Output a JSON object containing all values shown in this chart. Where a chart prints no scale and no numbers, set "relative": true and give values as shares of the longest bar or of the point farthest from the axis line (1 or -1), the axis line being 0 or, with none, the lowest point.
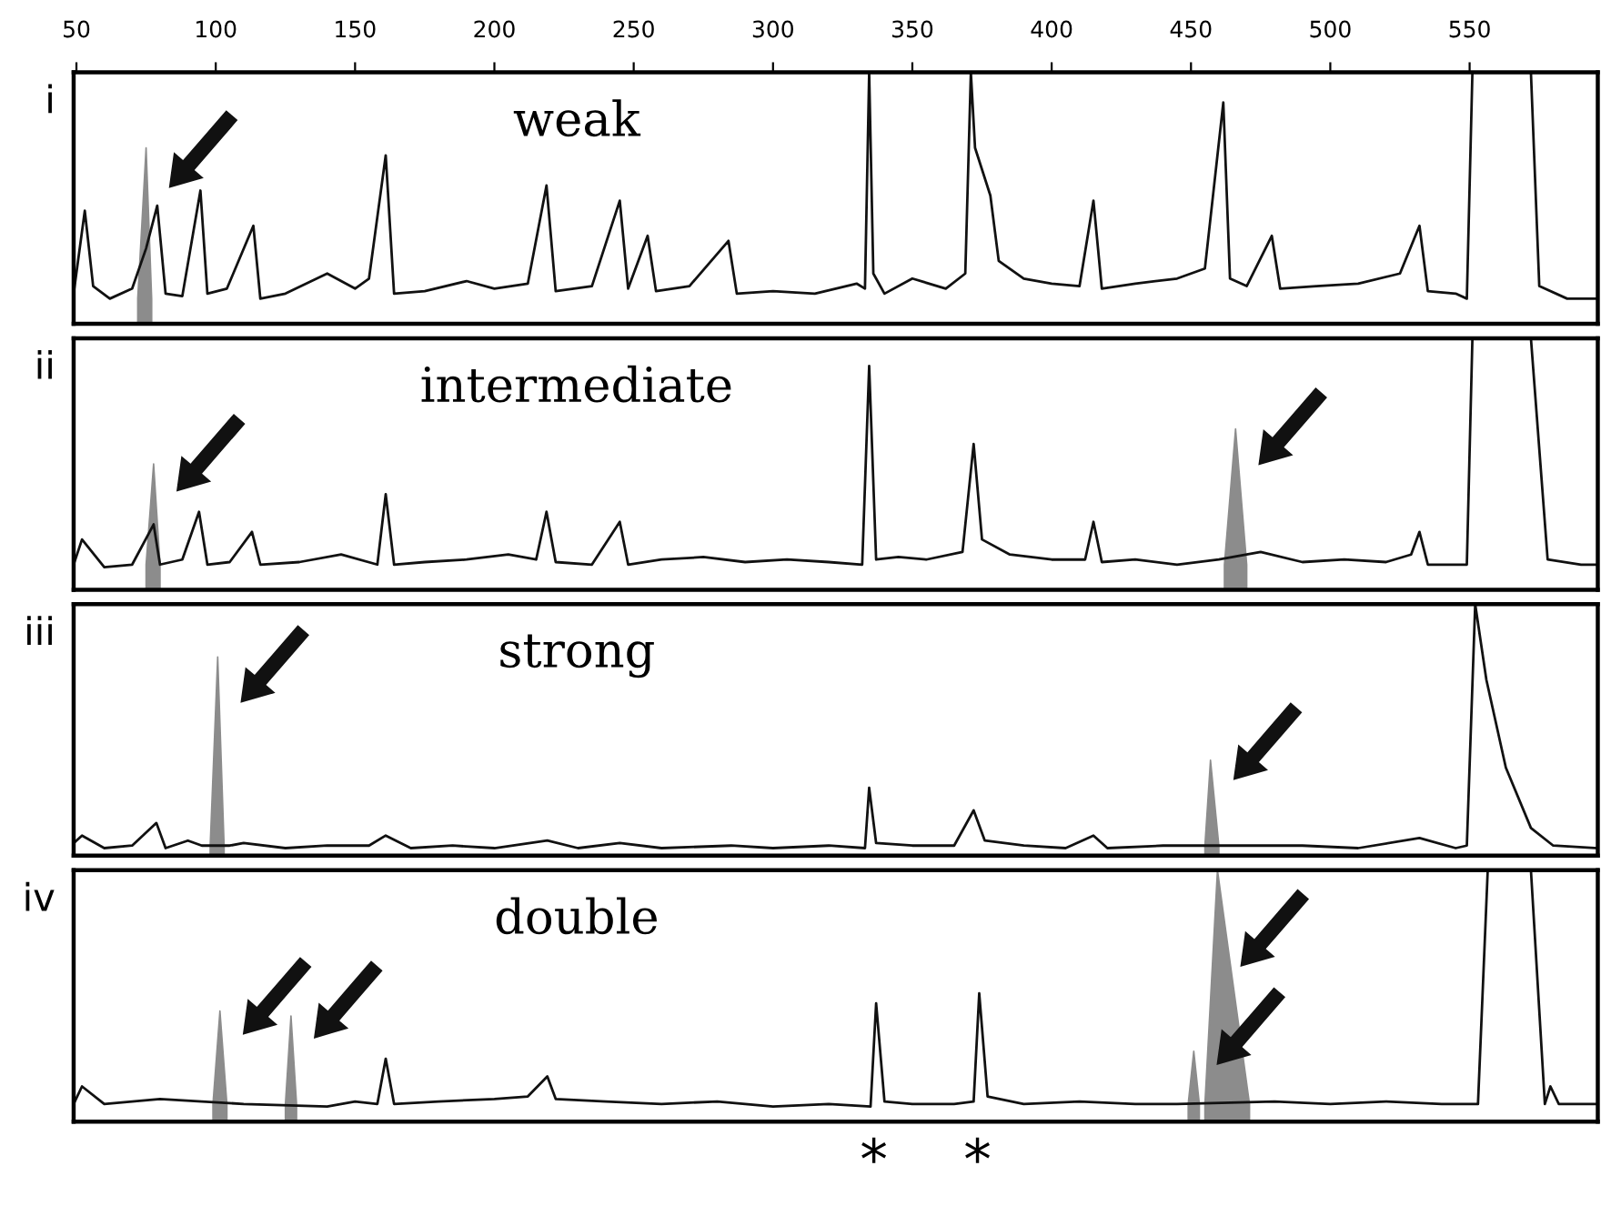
{
  "chart_data": [
    {
      "type": "line",
      "title": "weak",
      "ylabel": "i",
      "relative": true,
      "xlim": [
        49,
        596
      ],
      "xticks": [
        50,
        100,
        150,
        200,
        250,
        300,
        350,
        400,
        450,
        500,
        550
      ],
      "legend": false,
      "grid": false,
      "series": [
        {
          "color": "#111111",
          "x": [
            49,
            53,
            56,
            62,
            70,
            75,
            79,
            82,
            88,
            94.5,
            97,
            104,
            113.5,
            116,
            125,
            140,
            150,
            155,
            161,
            164,
            175,
            190,
            200,
            212,
            218.7,
            222,
            235,
            245,
            248,
            255,
            258,
            270,
            284,
            287,
            300,
            315,
            330,
            333,
            334.5,
            336,
            340,
            350,
            362,
            369,
            371,
            372.5,
            378,
            381,
            390,
            400,
            410,
            415,
            418,
            430,
            445,
            455,
            461.6,
            464,
            470,
            479,
            482,
            495,
            510,
            525,
            532,
            535,
            545,
            549,
            551,
            556,
            568,
            572,
            575,
            585,
            596
          ],
          "values": [
            0.12,
            0.45,
            0.15,
            0.1,
            0.14,
            0.3,
            0.47,
            0.12,
            0.11,
            0.53,
            0.12,
            0.14,
            0.39,
            0.1,
            0.12,
            0.2,
            0.14,
            0.18,
            0.67,
            0.12,
            0.13,
            0.17,
            0.14,
            0.16,
            0.55,
            0.13,
            0.15,
            0.49,
            0.14,
            0.35,
            0.13,
            0.15,
            0.33,
            0.12,
            0.13,
            0.12,
            0.16,
            0.14,
            1,
            0.2,
            0.12,
            0.18,
            0.14,
            0.2,
            1,
            0.7,
            0.51,
            0.25,
            0.18,
            0.16,
            0.15,
            0.49,
            0.14,
            0.16,
            0.18,
            0.22,
            0.88,
            0.18,
            0.15,
            0.35,
            0.14,
            0.15,
            0.16,
            0.2,
            0.39,
            0.13,
            0.12,
            0.1,
            1,
            1,
            1,
            1,
            0.15,
            0.1,
            0.1
          ]
        },
        {
          "type": "area",
          "color": "#8c8c8c",
          "x": [
            72,
            75,
            77
          ],
          "values": [
            0.1,
            0.7,
            0.1
          ]
        }
      ]
    },
    {
      "type": "line",
      "title": "intermediate",
      "ylabel": "ii",
      "relative": true,
      "xlim": [
        49,
        596
      ],
      "tick_labels": false,
      "legend": false,
      "grid": false,
      "series": [
        {
          "color": "#111111",
          "x": [
            49,
            52,
            60,
            70,
            77.7,
            80,
            88,
            94,
            97,
            105,
            113,
            116,
            130,
            145,
            158,
            161,
            164,
            175,
            190,
            205,
            215,
            218.7,
            222,
            235,
            245,
            248,
            260,
            275,
            290,
            305,
            320,
            332,
            334.5,
            337,
            345,
            355,
            368,
            372,
            375,
            385,
            400,
            412,
            415,
            418,
            430,
            445,
            460,
            475,
            490,
            505,
            520,
            529,
            532,
            535,
            545,
            549,
            551,
            556,
            568,
            572,
            578,
            590,
            596
          ],
          "values": [
            0.1,
            0.2,
            0.09,
            0.1,
            0.26,
            0.1,
            0.12,
            0.31,
            0.1,
            0.11,
            0.23,
            0.1,
            0.11,
            0.14,
            0.1,
            0.38,
            0.1,
            0.11,
            0.12,
            0.14,
            0.12,
            0.31,
            0.11,
            0.1,
            0.27,
            0.1,
            0.12,
            0.13,
            0.11,
            0.12,
            0.11,
            0.1,
            0.89,
            0.12,
            0.13,
            0.12,
            0.15,
            0.58,
            0.2,
            0.14,
            0.12,
            0.12,
            0.27,
            0.11,
            0.12,
            0.1,
            0.12,
            0.15,
            0.11,
            0.12,
            0.11,
            0.14,
            0.23,
            0.1,
            0.1,
            0.1,
            1,
            1,
            1,
            1,
            0.12,
            0.1,
            0.1
          ]
        },
        {
          "type": "area",
          "color": "#8c8c8c",
          "x": [
            75,
            77.7,
            80
          ],
          "values": [
            0.1,
            0.5,
            0.1
          ]
        },
        {
          "type": "area",
          "color": "#8c8c8c",
          "x": [
            462,
            466,
            470
          ],
          "values": [
            0.1,
            0.64,
            0.1
          ]
        }
      ]
    },
    {
      "type": "line",
      "title": "strong",
      "ylabel": "iii",
      "relative": true,
      "xlim": [
        49,
        596
      ],
      "tick_labels": false,
      "legend": false,
      "grid": false,
      "series": [
        {
          "color": "#111111",
          "x": [
            49,
            52,
            60,
            70,
            78.7,
            82,
            90,
            95,
            105,
            110,
            125,
            140,
            155,
            161,
            170,
            185,
            200,
            219,
            230,
            245,
            260,
            285,
            300,
            320,
            333,
            334.5,
            337,
            350,
            365,
            372,
            376,
            390,
            405,
            415,
            420,
            440,
            470,
            490,
            510,
            532,
            545,
            549,
            552,
            556,
            563,
            572,
            580,
            596
          ],
          "values": [
            0.05,
            0.08,
            0.03,
            0.04,
            0.13,
            0.03,
            0.06,
            0.04,
            0.04,
            0.05,
            0.03,
            0.04,
            0.04,
            0.08,
            0.03,
            0.04,
            0.03,
            0.06,
            0.03,
            0.05,
            0.03,
            0.04,
            0.03,
            0.04,
            0.03,
            0.27,
            0.05,
            0.04,
            0.04,
            0.18,
            0.06,
            0.04,
            0.03,
            0.08,
            0.03,
            0.04,
            0.04,
            0.04,
            0.03,
            0.07,
            0.03,
            0.04,
            1,
            0.7,
            0.35,
            0.11,
            0.04,
            0.03
          ]
        },
        {
          "type": "area",
          "color": "#8c8c8c",
          "x": [
            98,
            100.7,
            103
          ],
          "values": [
            0.04,
            0.79,
            0.04
          ]
        },
        {
          "type": "area",
          "color": "#8c8c8c",
          "x": [
            455,
            457,
            460
          ],
          "values": [
            0.04,
            0.38,
            0.04
          ]
        }
      ]
    },
    {
      "type": "line",
      "title": "double",
      "ylabel": "iv",
      "relative": true,
      "xlim": [
        49,
        596
      ],
      "tick_labels": false,
      "legend": false,
      "grid": false,
      "annotations": [
        "*",
        "*"
      ],
      "series": [
        {
          "color": "#111111",
          "x": [
            49,
            52,
            60,
            80,
            95,
            110,
            140,
            150,
            158,
            161,
            164,
            180,
            200,
            212,
            219,
            222,
            240,
            260,
            280,
            300,
            320,
            335,
            337,
            340,
            350,
            365,
            372,
            374,
            377,
            390,
            410,
            430,
            445,
            480,
            500,
            520,
            540,
            553,
            556.5,
            572,
            577,
            579,
            582,
            596
          ],
          "values": [
            0.07,
            0.14,
            0.07,
            0.09,
            0.08,
            0.07,
            0.06,
            0.08,
            0.07,
            0.25,
            0.07,
            0.08,
            0.09,
            0.1,
            0.18,
            0.09,
            0.08,
            0.07,
            0.08,
            0.06,
            0.07,
            0.06,
            0.47,
            0.08,
            0.07,
            0.07,
            0.08,
            0.51,
            0.1,
            0.07,
            0.08,
            0.07,
            0.07,
            0.08,
            0.07,
            0.08,
            0.07,
            0.07,
            1,
            1,
            0.07,
            0.14,
            0.07,
            0.07
          ]
        },
        {
          "type": "area",
          "color": "#8c8c8c",
          "x": [
            99,
            101.5,
            104
          ],
          "values": [
            0.07,
            0.44,
            0.07
          ]
        },
        {
          "type": "area",
          "color": "#8c8c8c",
          "x": [
            125,
            127,
            129
          ],
          "values": [
            0.07,
            0.42,
            0.07
          ]
        },
        {
          "type": "area",
          "color": "#8c8c8c",
          "x": [
            449,
            451,
            453
          ],
          "values": [
            0.07,
            0.28,
            0.07
          ]
        },
        {
          "type": "area",
          "color": "#8c8c8c",
          "x": [
            455,
            459.5,
            471
          ],
          "values": [
            0.07,
            1,
            0.07
          ]
        }
      ]
    }
  ]
}
